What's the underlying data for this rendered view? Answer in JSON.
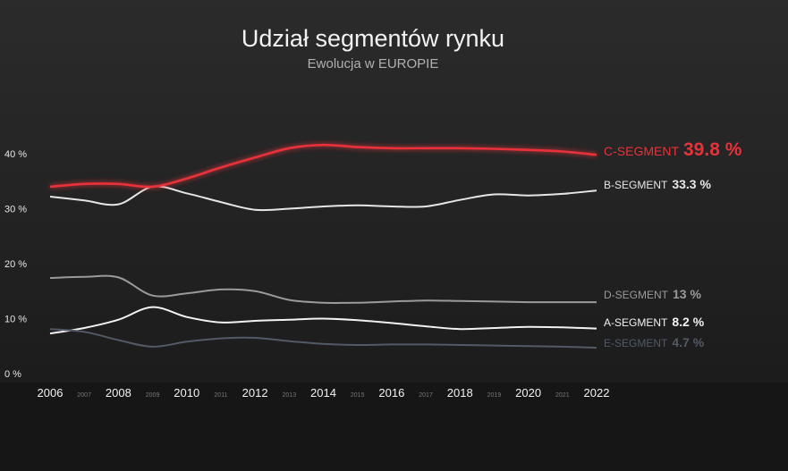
{
  "chart_data": {
    "type": "line",
    "title": "Udział segmentów rynku",
    "subtitle": "Ewolucja w EUROPIE",
    "x": [
      2006,
      2007,
      2008,
      2009,
      2010,
      2011,
      2012,
      2013,
      2014,
      2015,
      2016,
      2017,
      2018,
      2019,
      2020,
      2021,
      2022
    ],
    "x_tick_labels": [
      "2006",
      "2007",
      "2008",
      "2009",
      "2010",
      "2011",
      "2012",
      "2013",
      "2014",
      "2015",
      "2016",
      "2017",
      "2018",
      "2019",
      "2020",
      "2021",
      "2022"
    ],
    "y_tick_labels": [
      "0 %",
      "10 %",
      "20 %",
      "30 %",
      "40 %"
    ],
    "ylim": [
      0,
      45
    ],
    "grid": false,
    "series": [
      {
        "name": "C-SEGMENT",
        "value_label": "39.8 %",
        "color": "#e8323a",
        "highlight": true,
        "values": [
          34.0,
          34.5,
          34.5,
          34.0,
          35.5,
          37.5,
          39.3,
          41.0,
          41.6,
          41.2,
          41.0,
          41.0,
          41.0,
          40.9,
          40.7,
          40.4,
          39.8
        ]
      },
      {
        "name": "B-SEGMENT",
        "value_label": "33.3 %",
        "color": "#e6e6e6",
        "highlight": false,
        "values": [
          32.2,
          31.5,
          30.8,
          34.0,
          32.8,
          31.2,
          29.8,
          30.0,
          30.4,
          30.6,
          30.4,
          30.4,
          31.6,
          32.6,
          32.4,
          32.7,
          33.3
        ]
      },
      {
        "name": "D-SEGMENT",
        "value_label": "13 %",
        "color": "#9a9a9a",
        "highlight": false,
        "values": [
          17.4,
          17.6,
          17.5,
          14.2,
          14.6,
          15.3,
          15.0,
          13.4,
          12.9,
          12.9,
          13.1,
          13.3,
          13.2,
          13.1,
          13.0,
          13.0,
          13.0
        ]
      },
      {
        "name": "A-SEGMENT",
        "value_label": "8.2 %",
        "color": "#f2f2f2",
        "highlight": false,
        "values": [
          7.3,
          8.3,
          9.8,
          12.1,
          10.3,
          9.3,
          9.6,
          9.8,
          10.0,
          9.7,
          9.2,
          8.6,
          8.1,
          8.3,
          8.5,
          8.4,
          8.2
        ]
      },
      {
        "name": "E-SEGMENT",
        "value_label": "4.7 %",
        "color": "#525a66",
        "highlight": false,
        "values": [
          8.1,
          7.6,
          6.1,
          4.9,
          5.8,
          6.4,
          6.5,
          5.9,
          5.4,
          5.2,
          5.3,
          5.3,
          5.2,
          5.1,
          5.0,
          4.9,
          4.7
        ]
      }
    ]
  }
}
